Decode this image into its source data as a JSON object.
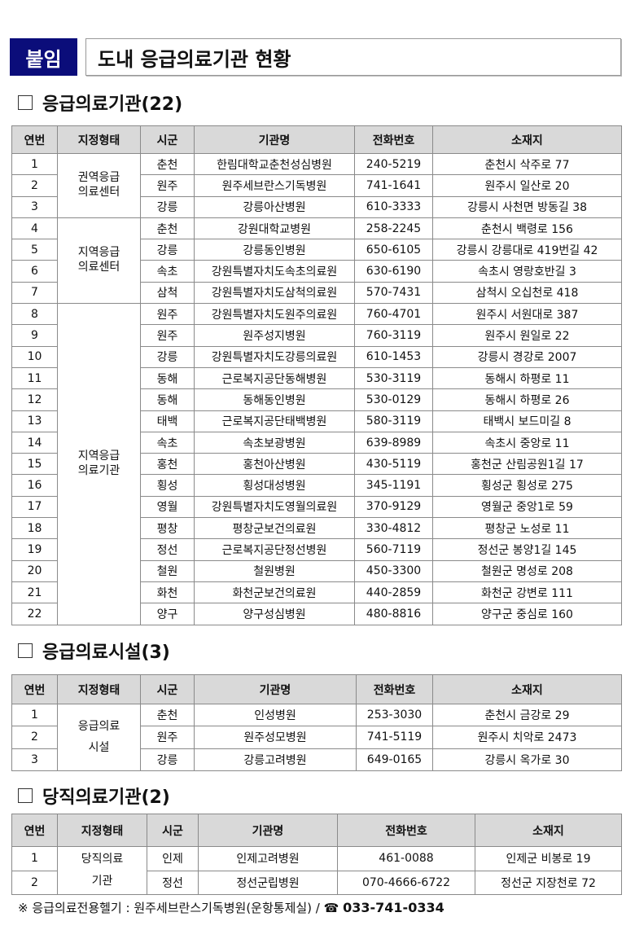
{
  "header": {
    "badge": "붙임",
    "title": "도내 응급의료기관 현황"
  },
  "columns": [
    "연번",
    "지정형태",
    "시군",
    "기관명",
    "전화번호",
    "소재지"
  ],
  "sections": [
    {
      "title": "응급의료기관(22)",
      "rows": [
        [
          "1",
          "권역응급\n의료센터",
          "춘천",
          "한림대학교춘천성심병원",
          "240-5219",
          "춘천시 삭주로 77"
        ],
        [
          "2",
          "권역응급\n의료센터",
          "원주",
          "원주세브란스기독병원",
          "741-1641",
          "원주시 일산로 20"
        ],
        [
          "3",
          "권역응급\n의료센터",
          "강릉",
          "강릉아산병원",
          "610-3333",
          "강릉시 사천면 방동길 38"
        ],
        [
          "4",
          "지역응급\n의료센터",
          "춘천",
          "강원대학교병원",
          "258-2245",
          "춘천시 백령로 156"
        ],
        [
          "5",
          "지역응급\n의료센터",
          "강릉",
          "강릉동인병원",
          "650-6105",
          "강릉시 강릉대로 419번길 42"
        ],
        [
          "6",
          "지역응급\n의료센터",
          "속초",
          "강원특별자치도속초의료원",
          "630-6190",
          "속초시 영랑호반길 3"
        ],
        [
          "7",
          "지역응급\n의료센터",
          "삼척",
          "강원특별자치도삼척의료원",
          "570-7431",
          "삼척시 오십천로 418"
        ],
        [
          "8",
          "지역응급\n의료기관",
          "원주",
          "강원특별자치도원주의료원",
          "760-4701",
          "원주시 서원대로 387"
        ],
        [
          "9",
          "지역응급\n의료기관",
          "원주",
          "원주성지병원",
          "760-3119",
          "원주시 원일로 22"
        ],
        [
          "10",
          "지역응급\n의료기관",
          "강릉",
          "강원특별자치도강릉의료원",
          "610-1453",
          "강릉시 경강로 2007"
        ],
        [
          "11",
          "지역응급\n의료기관",
          "동해",
          "근로복지공단동해병원",
          "530-3119",
          "동해시 하평로 11"
        ],
        [
          "12",
          "지역응급\n의료기관",
          "동해",
          "동해동인병원",
          "530-0129",
          "동해시 하평로 26"
        ],
        [
          "13",
          "지역응급\n의료기관",
          "태백",
          "근로복지공단태백병원",
          "580-3119",
          "태백시 보드미길 8"
        ],
        [
          "14",
          "지역응급\n의료기관",
          "속초",
          "속초보광병원",
          "639-8989",
          "속초시 중앙로 11"
        ],
        [
          "15",
          "지역응급\n의료기관",
          "홍천",
          "홍천아산병원",
          "430-5119",
          "홍천군 산림공원1길 17"
        ],
        [
          "16",
          "지역응급\n의료기관",
          "횡성",
          "횡성대성병원",
          "345-1191",
          "횡성군 횡성로 275"
        ],
        [
          "17",
          "지역응급\n의료기관",
          "영월",
          "강원특별자치도영월의료원",
          "370-9129",
          "영월군 중앙1로 59"
        ],
        [
          "18",
          "지역응급\n의료기관",
          "평창",
          "평창군보건의료원",
          "330-4812",
          "평창군 노성로 11"
        ],
        [
          "19",
          "지역응급\n의료기관",
          "정선",
          "근로복지공단정선병원",
          "560-7119",
          "정선군 봉양1길 145"
        ],
        [
          "20",
          "지역응급\n의료기관",
          "철원",
          "철원병원",
          "450-3300",
          "철원군 명성로 208"
        ],
        [
          "21",
          "지역응급\n의료기관",
          "화천",
          "화천군보건의료원",
          "440-2859",
          "화천군 강변로 111"
        ],
        [
          "22",
          "지역응급\n의료기관",
          "양구",
          "양구성심병원",
          "480-8816",
          "양구군 중심로 160"
        ]
      ]
    },
    {
      "title": "응급의료시설(3)",
      "rows": [
        [
          "1",
          "응급의료\n시설",
          "춘천",
          "인성병원",
          "253-3030",
          "춘천시 금강로 29"
        ],
        [
          "2",
          "응급의료\n시설",
          "원주",
          "원주성모병원",
          "741-5119",
          "원주시 치악로 2473"
        ],
        [
          "3",
          "응급의료\n시설",
          "강릉",
          "강릉고려병원",
          "649-0165",
          "강릉시 옥가로 30"
        ]
      ]
    },
    {
      "title": "당직의료기관(2)",
      "rows": [
        [
          "1",
          "당직의료\n기관",
          "인제",
          "인제고려병원",
          "461-0088",
          "인제군 비봉로 19"
        ],
        [
          "2",
          "당직의료\n기관",
          "정선",
          "정선군립병원",
          "070-4666-6722",
          "정선군 지장천로 72"
        ]
      ]
    }
  ],
  "footer": {
    "prefix": "※ 응급의료전용헬기 : 원주세브란스기독병원(운항통제실) /",
    "phone_icon": "telephone-icon",
    "phone": "033-741-0334"
  }
}
